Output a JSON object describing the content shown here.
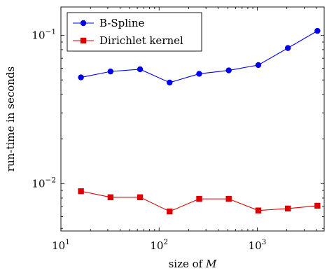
{
  "chart_data": {
    "type": "line",
    "xscale": "log",
    "yscale": "log",
    "xlim": [
      10,
      4800
    ],
    "ylim": [
      0.0048,
      0.155
    ],
    "xlabel": "size of M",
    "xlabel_prefix": "size of ",
    "xlabel_var": "M",
    "ylabel": "run-time in seconds",
    "grid": false,
    "legend_position": "top-left",
    "x_ticks": [
      {
        "value": 10,
        "base": "10",
        "exp": "1"
      },
      {
        "value": 100,
        "base": "10",
        "exp": "2"
      },
      {
        "value": 1000,
        "base": "10",
        "exp": "3"
      }
    ],
    "y_ticks": [
      {
        "value": 0.01,
        "base": "10",
        "exp": "−2"
      },
      {
        "value": 0.1,
        "base": "10",
        "exp": "−1"
      }
    ],
    "x": [
      16,
      32,
      64,
      128,
      256,
      512,
      1024,
      2048,
      4096
    ],
    "series": [
      {
        "name": "B-Spline",
        "color": "#0000ee",
        "marker": "circle",
        "values": [
          0.052,
          0.057,
          0.059,
          0.048,
          0.055,
          0.058,
          0.063,
          0.082,
          0.107
        ]
      },
      {
        "name": "Dirichlet kernel",
        "color": "#dd0000",
        "marker": "square",
        "values": [
          0.0089,
          0.0081,
          0.0081,
          0.0065,
          0.0079,
          0.0079,
          0.0066,
          0.0068,
          0.0071
        ]
      }
    ]
  }
}
